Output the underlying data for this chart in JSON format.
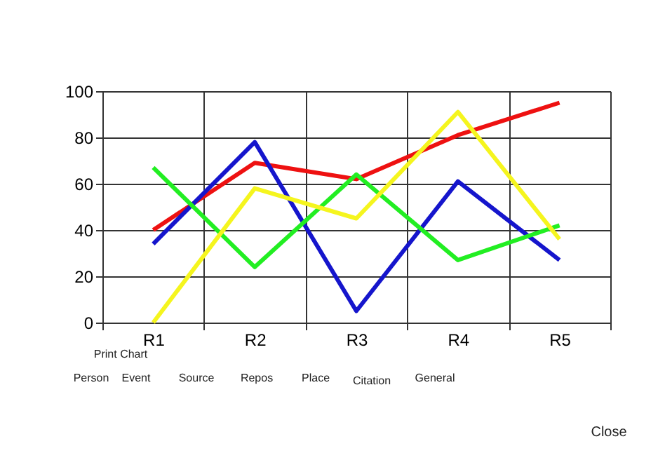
{
  "chart_data": {
    "type": "line",
    "categories": [
      "R1",
      "R2",
      "R3",
      "R4",
      "R5"
    ],
    "series": [
      {
        "color": "#ee1111",
        "values": [
          40,
          69,
          62,
          81,
          95
        ]
      },
      {
        "color": "#1515cc",
        "values": [
          34,
          78,
          5,
          61,
          27
        ]
      },
      {
        "color": "#22ee22",
        "values": [
          67,
          24,
          64,
          27,
          42
        ]
      },
      {
        "color": "#f5f51e",
        "values": [
          0,
          58,
          45,
          91,
          36
        ]
      }
    ],
    "ylim": [
      0,
      100
    ],
    "yticks": [
      0,
      20,
      40,
      60,
      80,
      100
    ],
    "grid": true,
    "legend": false,
    "marker": "none",
    "line_style": "solid",
    "annotations": [
      "Print Chart",
      "Person",
      "Event",
      "Source",
      "Repos",
      "Place",
      "Citation",
      "General",
      "Close"
    ]
  }
}
